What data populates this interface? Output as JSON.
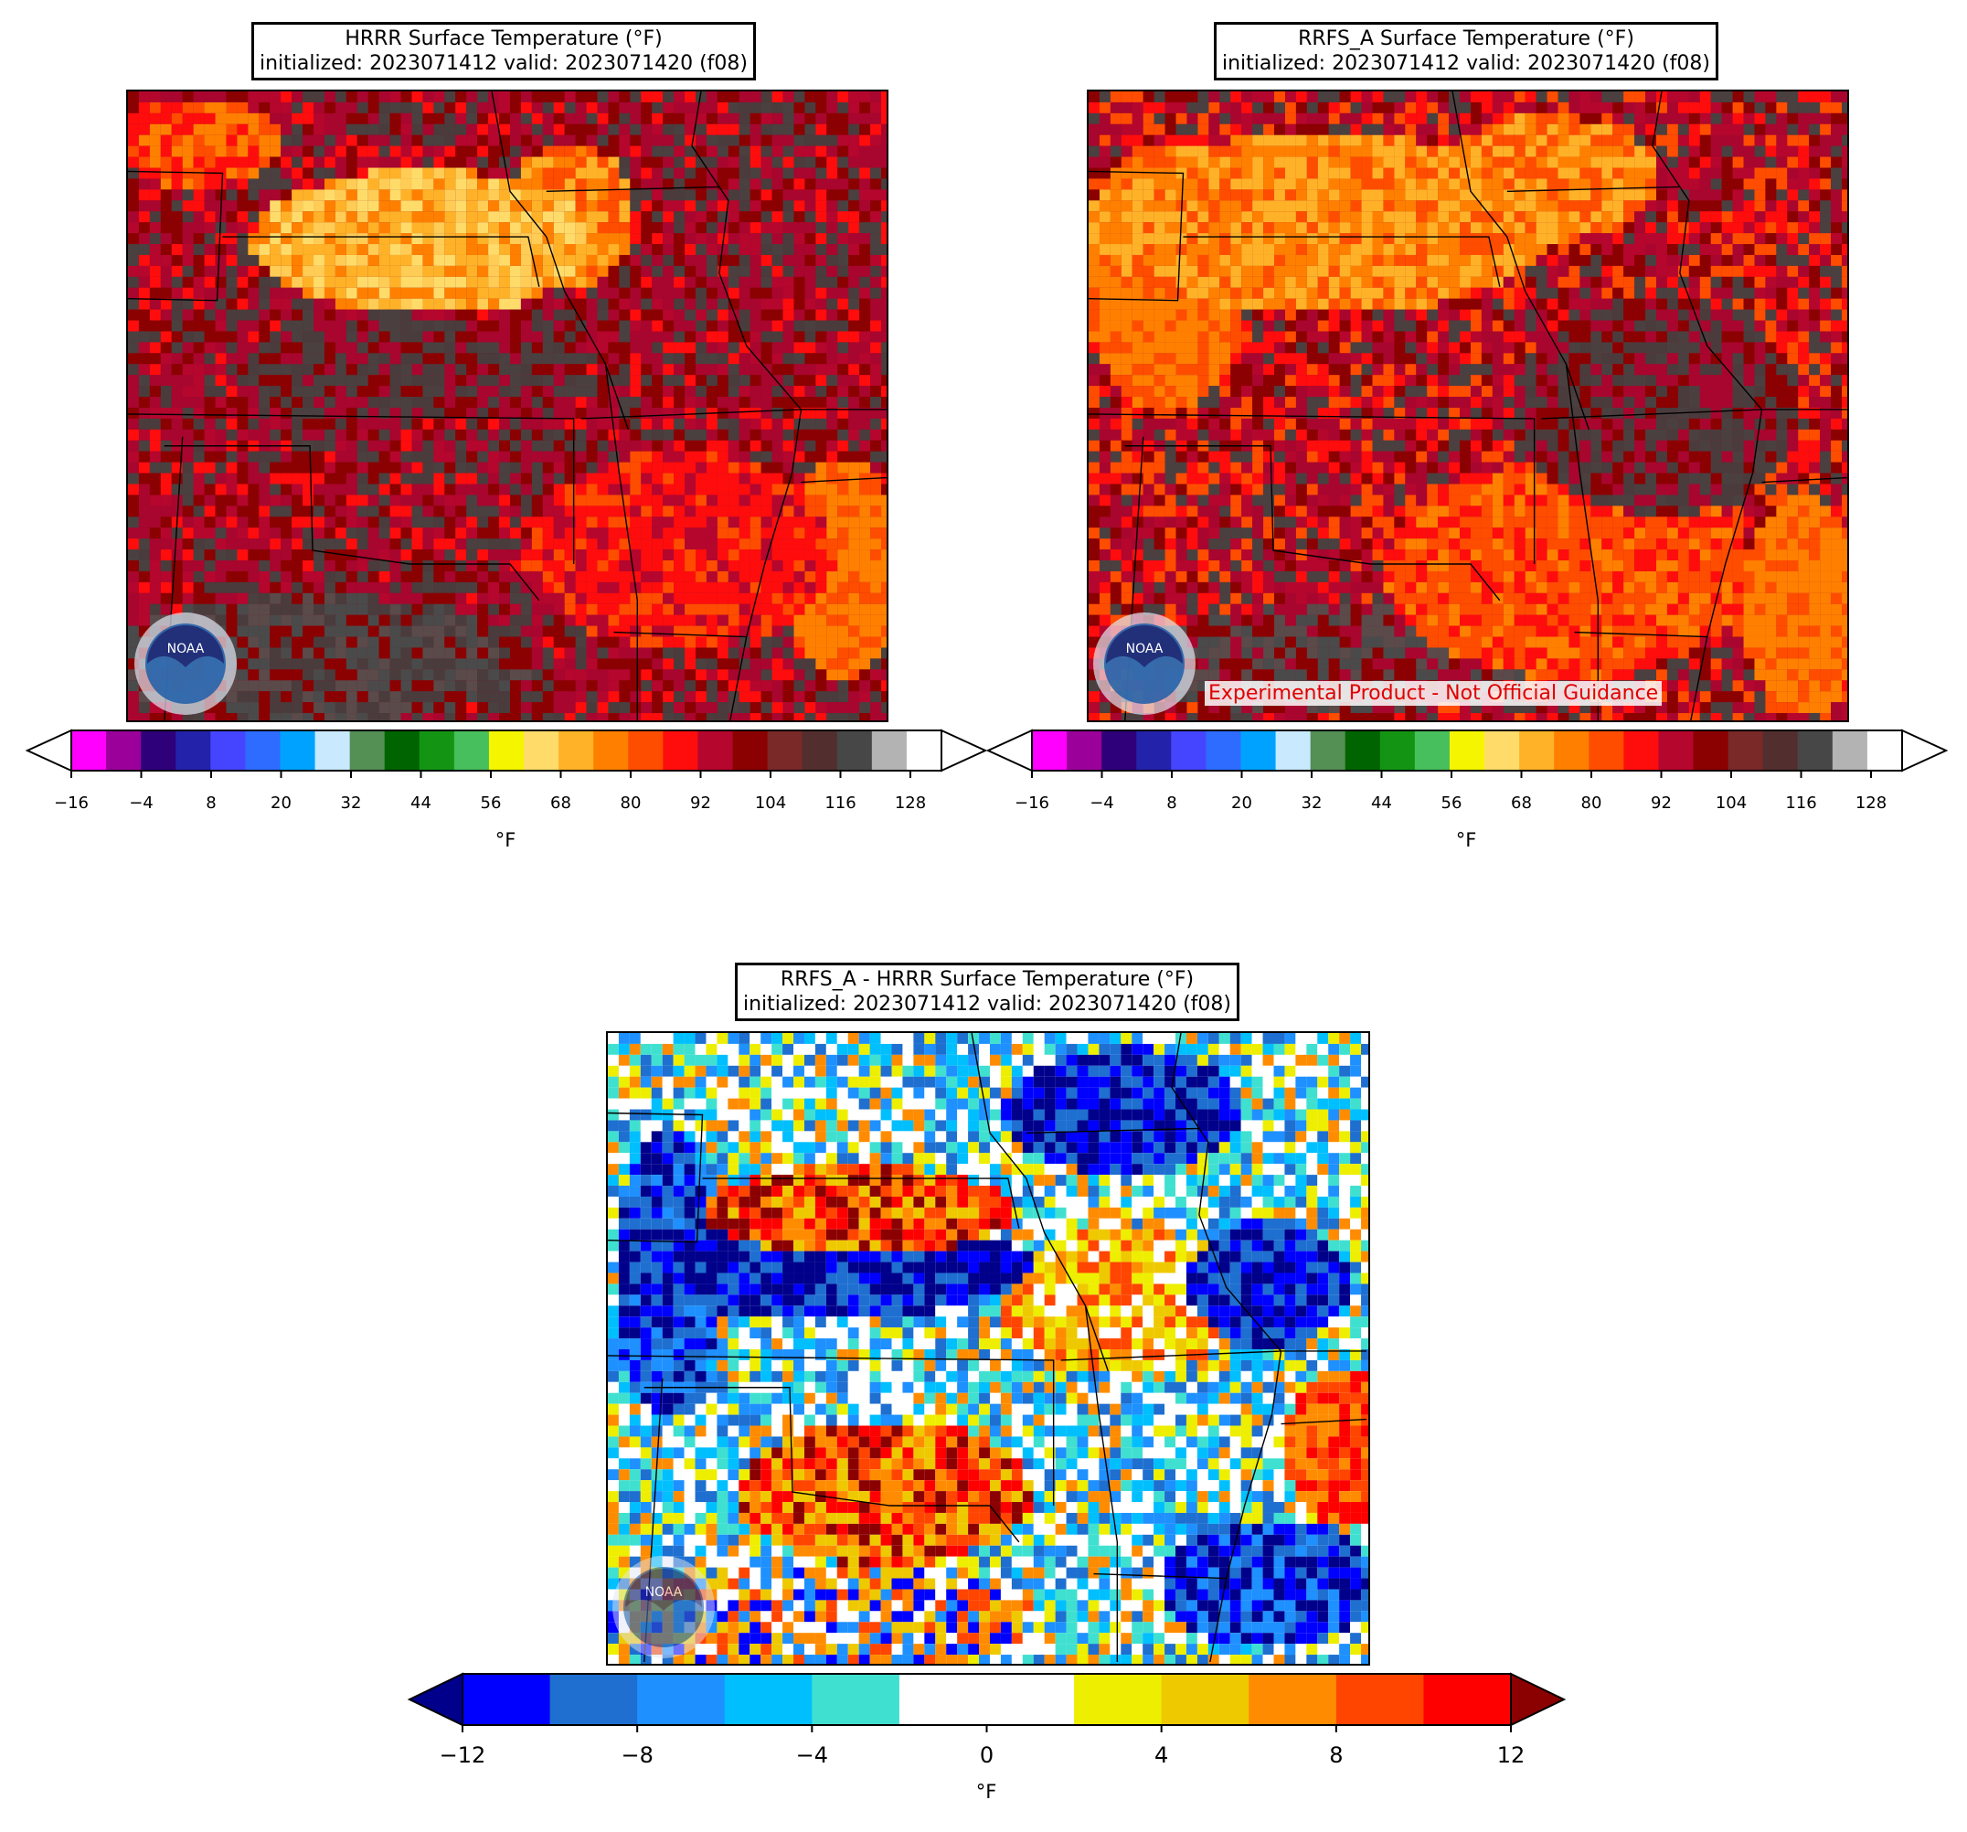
{
  "panels": [
    {
      "id": "hrrr",
      "title_line1": "HRRR Surface Temperature (°F)",
      "title_line2": "initialized: 2023071412 valid: 2023071420 (f08)",
      "units": "°F",
      "logo_text": "NOAA"
    },
    {
      "id": "rrfs",
      "title_line1": "RRFS_A Surface Temperature (°F)",
      "title_line2": "initialized: 2023071412 valid: 2023071420 (f08)",
      "units": "°F",
      "logo_text": "NOAA",
      "watermark": "Experimental Product - Not Official Guidance"
    },
    {
      "id": "diff",
      "title_line1": "RRFS_A - HRRR Surface Temperature (°F)",
      "title_line2": "initialized: 2023071412 valid: 2023071420 (f08)",
      "units": "°F",
      "logo_text": "NOAA"
    }
  ],
  "temp_colorbar": {
    "min": -16,
    "max": 134,
    "step": 6,
    "extend": "both",
    "ticks": [
      "−16",
      "−4",
      "8",
      "20",
      "32",
      "44",
      "56",
      "68",
      "80",
      "92",
      "104",
      "116",
      "128"
    ],
    "colors": [
      "#ff00ff",
      "#9b009b",
      "#2e007a",
      "#2222aa",
      "#4545ff",
      "#2d6cff",
      "#00a2ff",
      "#c9e9ff",
      "#548f54",
      "#006400",
      "#139513",
      "#47bf5c",
      "#f5f500",
      "#ffdc6a",
      "#ffb228",
      "#ff8000",
      "#ff4d00",
      "#ff0d0d",
      "#b5062e",
      "#8b0000",
      "#7a2828",
      "#522e2e",
      "#474747",
      "#b3b3b3",
      "#ffffff"
    ],
    "under_color": "#ffffff",
    "over_color": "#ffffff"
  },
  "diff_colorbar": {
    "min": -12,
    "max": 12,
    "step": 2,
    "extend": "both",
    "ticks": [
      "−12",
      "−8",
      "−4",
      "0",
      "4",
      "8",
      "12"
    ],
    "colors": [
      "#0000ff",
      "#1e6fd0",
      "#1e90ff",
      "#00bfff",
      "#40e0d0",
      "#ffffff",
      "#ffffff",
      "#eeee00",
      "#eec900",
      "#ff8c00",
      "#ff4500",
      "#ff0000"
    ],
    "under_color": "#00008b",
    "over_color": "#8b0000"
  }
}
